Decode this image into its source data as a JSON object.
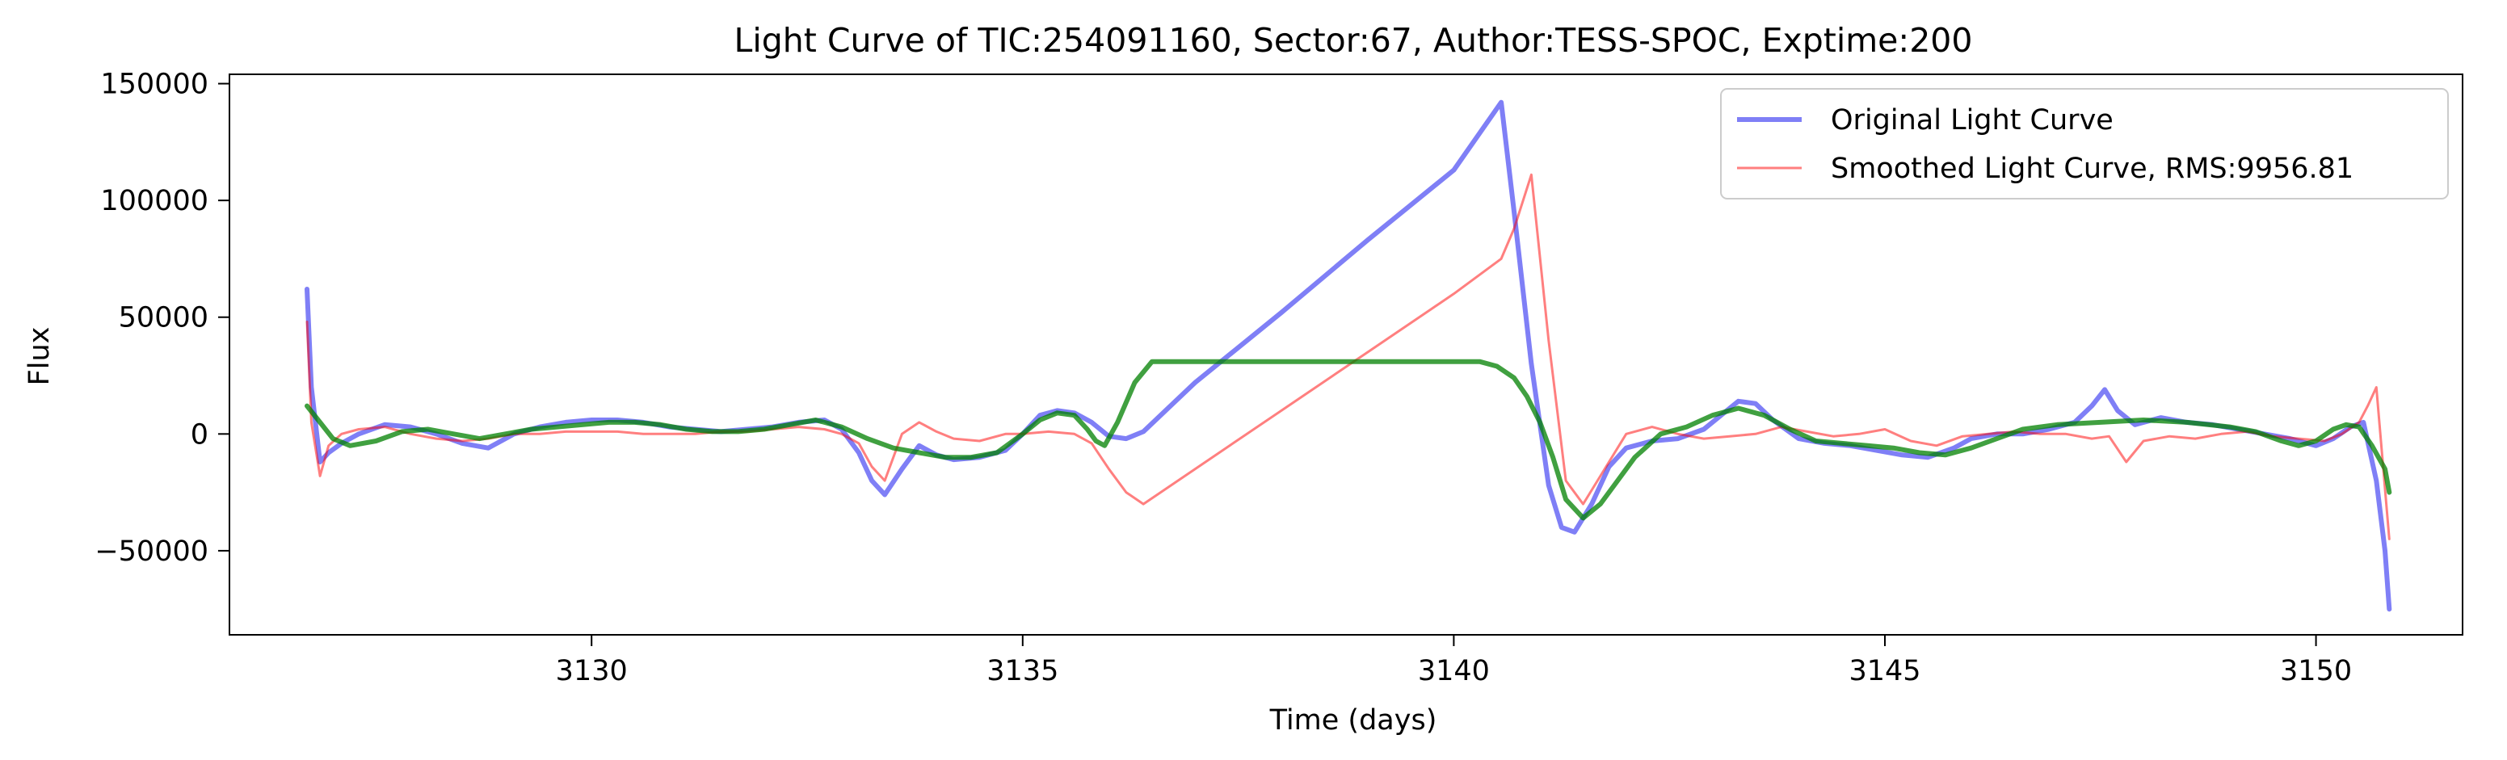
{
  "chart_data": {
    "type": "line",
    "title": "Light Curve of TIC:254091160, Sector:67, Author:TESS-SPOC, Exptime:200",
    "xlabel": "Time (days)",
    "ylabel": "Flux",
    "xlim": [
      3125.8,
      3151.7
    ],
    "ylim": [
      -86000,
      154000
    ],
    "xticks": [
      3130,
      3135,
      3140,
      3145,
      3150
    ],
    "yticks": [
      -50000,
      0,
      50000,
      100000,
      150000
    ],
    "xtick_labels": [
      "3130",
      "3135",
      "3140",
      "3145",
      "3150"
    ],
    "ytick_labels": [
      "−50000",
      "0",
      "50000",
      "100000",
      "150000"
    ],
    "grid": false,
    "legend_position": "top-right",
    "series": [
      {
        "name": "Original Light Curve",
        "color": "#0000ee",
        "opacity": 0.5,
        "x": [
          3126.7,
          3126.75,
          3126.85,
          3126.95,
          3127.1,
          3127.3,
          3127.6,
          3127.9,
          3128.2,
          3128.5,
          3128.8,
          3129.1,
          3129.4,
          3129.7,
          3130.0,
          3130.3,
          3130.6,
          3130.9,
          3131.2,
          3131.5,
          3131.8,
          3132.1,
          3132.4,
          3132.7,
          3132.9,
          3133.1,
          3133.25,
          3133.4,
          3133.6,
          3133.8,
          3134.0,
          3134.2,
          3134.5,
          3134.8,
          3135.0,
          3135.2,
          3135.4,
          3135.6,
          3135.8,
          3136.0,
          3136.2,
          3136.4,
          3137.0,
          3138.0,
          3139.0,
          3140.0,
          3140.55,
          3140.7,
          3140.9,
          3141.1,
          3141.25,
          3141.4,
          3141.6,
          3141.8,
          3142.0,
          3142.3,
          3142.6,
          3142.9,
          3143.1,
          3143.3,
          3143.5,
          3143.7,
          3144.0,
          3144.3,
          3144.6,
          3144.9,
          3145.2,
          3145.5,
          3145.8,
          3146.0,
          3146.3,
          3146.6,
          3146.9,
          3147.2,
          3147.4,
          3147.55,
          3147.7,
          3147.9,
          3148.2,
          3148.5,
          3148.8,
          3149.1,
          3149.4,
          3149.7,
          3150.0,
          3150.2,
          3150.4,
          3150.55,
          3150.7,
          3150.8,
          3150.85
        ],
        "y": [
          62000,
          20000,
          -12000,
          -8000,
          -4000,
          0,
          4000,
          3000,
          0,
          -4000,
          -6000,
          0,
          3000,
          5000,
          6000,
          6000,
          5000,
          3000,
          2000,
          1000,
          2000,
          3000,
          5000,
          6000,
          2000,
          -8000,
          -20000,
          -26000,
          -15000,
          -5000,
          -9000,
          -11000,
          -10000,
          -7000,
          0,
          8000,
          10000,
          9000,
          5000,
          -1000,
          -2000,
          1000,
          22000,
          52000,
          83000,
          113000,
          142000,
          95000,
          30000,
          -22000,
          -40000,
          -42000,
          -30000,
          -14000,
          -6000,
          -3000,
          -2000,
          2000,
          8000,
          14000,
          13000,
          6000,
          -2000,
          -4000,
          -5000,
          -7000,
          -9000,
          -10000,
          -6000,
          -2000,
          0,
          0,
          2000,
          5000,
          12000,
          19000,
          10000,
          4000,
          7000,
          5000,
          4000,
          2000,
          0,
          -2000,
          -5000,
          -2000,
          3000,
          5000,
          -20000,
          -50000,
          -75000
        ]
      },
      {
        "name": "Smoothed Light Curve, RMS:9956.81",
        "color": "#ff0000",
        "opacity": 0.5,
        "x": [
          3126.7,
          3126.75,
          3126.85,
          3126.95,
          3127.1,
          3127.3,
          3127.6,
          3127.9,
          3128.2,
          3128.5,
          3128.8,
          3129.1,
          3129.4,
          3129.7,
          3130.0,
          3130.3,
          3130.6,
          3130.9,
          3131.2,
          3131.5,
          3131.8,
          3132.1,
          3132.4,
          3132.7,
          3132.9,
          3133.1,
          3133.25,
          3133.4,
          3133.6,
          3133.8,
          3134.0,
          3134.2,
          3134.5,
          3134.8,
          3135.0,
          3135.3,
          3135.6,
          3135.8,
          3136.0,
          3136.2,
          3136.4,
          3137.0,
          3138.0,
          3139.0,
          3140.0,
          3140.55,
          3140.7,
          3140.9,
          3141.1,
          3141.3,
          3141.5,
          3141.8,
          3142.0,
          3142.3,
          3142.6,
          3142.9,
          3143.2,
          3143.5,
          3143.8,
          3144.1,
          3144.4,
          3144.7,
          3145.0,
          3145.3,
          3145.6,
          3145.9,
          3146.2,
          3146.5,
          3146.8,
          3147.1,
          3147.4,
          3147.6,
          3147.8,
          3148.0,
          3148.3,
          3148.6,
          3148.9,
          3149.2,
          3149.5,
          3149.8,
          3150.1,
          3150.3,
          3150.5,
          3150.6,
          3150.7,
          3150.85
        ],
        "y": [
          48000,
          5000,
          -18000,
          -5000,
          0,
          2000,
          3000,
          0,
          -2000,
          -3000,
          -2000,
          0,
          0,
          1000,
          1000,
          1000,
          0,
          0,
          0,
          1000,
          1000,
          2000,
          3000,
          2000,
          0,
          -4000,
          -14000,
          -20000,
          0,
          5000,
          1000,
          -2000,
          -3000,
          0,
          0,
          1000,
          0,
          -4000,
          -15000,
          -25000,
          -30000,
          -15000,
          10000,
          35000,
          60000,
          75000,
          88000,
          111000,
          40000,
          -20000,
          -30000,
          -12000,
          0,
          3000,
          0,
          -2000,
          -1000,
          0,
          3000,
          1000,
          -1000,
          0,
          2000,
          -3000,
          -5000,
          -1000,
          0,
          1000,
          0,
          0,
          -2000,
          -1000,
          -12000,
          -3000,
          -1000,
          -2000,
          0,
          1000,
          -1000,
          -2000,
          -3000,
          0,
          5000,
          12000,
          20000,
          -45000
        ]
      },
      {
        "name": "",
        "color": "#008000",
        "opacity": 0.75,
        "x": [
          3126.7,
          3126.85,
          3127.0,
          3127.2,
          3127.5,
          3127.8,
          3128.1,
          3128.4,
          3128.7,
          3129.0,
          3129.3,
          3129.6,
          3129.9,
          3130.2,
          3130.5,
          3130.8,
          3131.1,
          3131.4,
          3131.7,
          3132.0,
          3132.3,
          3132.6,
          3132.9,
          3133.2,
          3133.5,
          3133.8,
          3134.1,
          3134.4,
          3134.7,
          3135.0,
          3135.2,
          3135.4,
          3135.6,
          3135.75,
          3135.85,
          3135.95,
          3136.1,
          3136.3,
          3136.5,
          3137.0,
          3138.0,
          3139.0,
          3140.0,
          3140.3,
          3140.5,
          3140.7,
          3140.85,
          3141.0,
          3141.15,
          3141.3,
          3141.5,
          3141.7,
          3141.9,
          3142.1,
          3142.4,
          3142.7,
          3143.0,
          3143.3,
          3143.6,
          3143.9,
          3144.2,
          3144.5,
          3144.8,
          3145.1,
          3145.4,
          3145.7,
          3146.0,
          3146.3,
          3146.6,
          3147.0,
          3147.5,
          3148.0,
          3148.5,
          3149.0,
          3149.3,
          3149.6,
          3149.8,
          3150.0,
          3150.2,
          3150.35,
          3150.5,
          3150.65,
          3150.8,
          3150.85
        ],
        "y": [
          12000,
          5000,
          -2000,
          -5000,
          -3000,
          1000,
          2000,
          0,
          -2000,
          0,
          2000,
          3000,
          4000,
          5000,
          5000,
          4000,
          2000,
          1000,
          1000,
          2000,
          4000,
          6000,
          3000,
          -2000,
          -6000,
          -8000,
          -10000,
          -10000,
          -8000,
          0,
          6000,
          9000,
          8000,
          2000,
          -3000,
          -5000,
          5000,
          22000,
          31000,
          31000,
          31000,
          31000,
          31000,
          31000,
          29000,
          24000,
          16000,
          5000,
          -10000,
          -28000,
          -36000,
          -30000,
          -20000,
          -10000,
          0,
          3000,
          8000,
          11000,
          8000,
          2000,
          -3000,
          -4000,
          -5000,
          -6000,
          -8000,
          -9000,
          -6000,
          -2000,
          2000,
          4000,
          5000,
          6000,
          5000,
          3000,
          1000,
          -3000,
          -5000,
          -3000,
          2000,
          4000,
          3000,
          -5000,
          -15000,
          -25000
        ]
      }
    ]
  }
}
